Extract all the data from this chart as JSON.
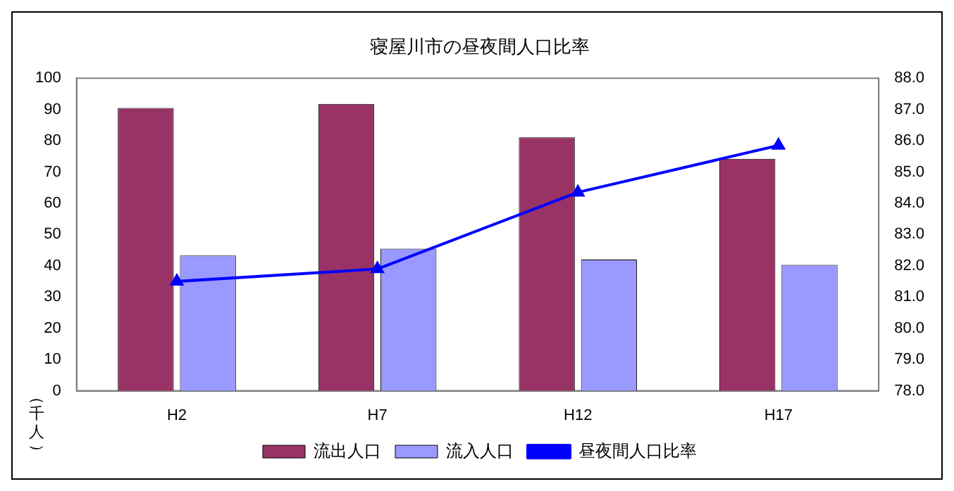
{
  "chart_data": {
    "type": "bar",
    "title": "寝屋川市の昼夜間人口比率",
    "ylabel": "（千人）",
    "categories": [
      "H2",
      "H7",
      "H12",
      "H17"
    ],
    "series": [
      {
        "name": "流出人口",
        "color": "#993366",
        "values": [
          90.5,
          91.8,
          81.1,
          74.2
        ]
      },
      {
        "name": "流入人口",
        "color": "#9999ff",
        "values": [
          43.3,
          45.5,
          42,
          40.3
        ]
      },
      {
        "name": "昼夜間人口比率",
        "type": "line",
        "axis": "y2",
        "color": "#0000ff",
        "values": [
          81.5,
          81.9,
          84.35,
          85.85
        ]
      }
    ],
    "ylim": [
      0,
      100
    ],
    "yticks": [
      0,
      10,
      20,
      30,
      40,
      50,
      60,
      70,
      80,
      90,
      100
    ],
    "y2lim": [
      78,
      88
    ],
    "y2ticks": [
      {
        "value": 78,
        "label": "78.0"
      },
      {
        "value": 79,
        "label": "79.0"
      },
      {
        "value": 80,
        "label": "80.0"
      },
      {
        "value": 81,
        "label": "81.0"
      },
      {
        "value": 82,
        "label": "82.0"
      },
      {
        "value": 83,
        "label": "83.0"
      },
      {
        "value": 84,
        "label": "84.0"
      },
      {
        "value": 85,
        "label": "85.0"
      },
      {
        "value": 86,
        "label": "86.0"
      },
      {
        "value": 87,
        "label": "87.0"
      },
      {
        "value": 88,
        "label": "88.0"
      }
    ],
    "marker": "triangle",
    "legend": "bottom",
    "grid": false
  }
}
